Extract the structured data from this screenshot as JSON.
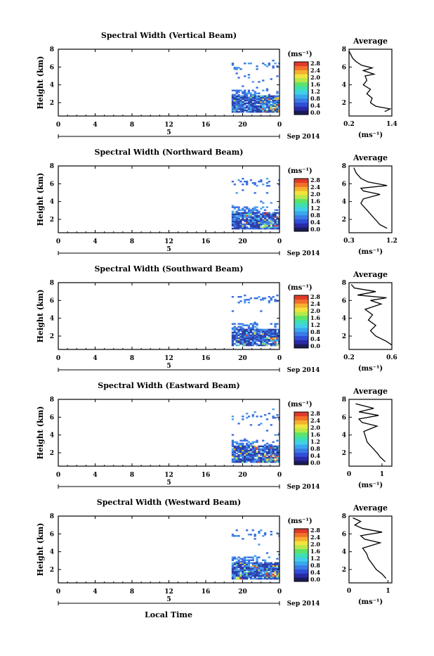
{
  "footer": {
    "xlabel": "Local Time"
  },
  "colorscale": {
    "colors": [
      "#1b1b5a",
      "#2a2aa8",
      "#2f4fd8",
      "#3a7be6",
      "#38a8ee",
      "#40d0e6",
      "#3fe0b0",
      "#5ce36a",
      "#b8e84a",
      "#f2e43c",
      "#f6b02e",
      "#f2702a",
      "#e03a2a"
    ],
    "value_colors": [
      "#2d3fa8",
      "#3a6fe0",
      "#4aa0ec",
      "#56d2e0",
      "#6ee08a",
      "#c8e24a",
      "#f0b030",
      "#e04a2a"
    ]
  },
  "chart_data": [
    {
      "type": "heatmap",
      "title": "Spectral Width (Vertical Beam)",
      "ylabel": "Height (km)",
      "x_ticks": [
        "0",
        "4",
        "8",
        "12",
        "16",
        "20",
        "0"
      ],
      "day_label": "5",
      "date_label": "Sep 2014",
      "xlim": [
        0,
        24
      ],
      "ylim": [
        0.5,
        8
      ],
      "y_ticks": [
        "2",
        "4",
        "6",
        "8"
      ],
      "colorbar": {
        "unit": "(ms⁻¹)",
        "ticks": [
          "0.0",
          "0.4",
          "0.8",
          "1.2",
          "1.6",
          "2.0",
          "2.4",
          "2.8"
        ],
        "range": [
          0,
          2.8
        ]
      },
      "average": {
        "title": "Average",
        "xlabel": "(ms⁻¹)",
        "x_ticks": [
          "0.2",
          "1.4"
        ],
        "xlim": [
          0.2,
          1.4
        ],
        "profile": [
          [
            1.2,
            1.0
          ],
          [
            1.35,
            1.3
          ],
          [
            0.95,
            1.6
          ],
          [
            0.8,
            2.0
          ],
          [
            0.85,
            2.5
          ],
          [
            0.7,
            3.0
          ],
          [
            0.8,
            3.5
          ],
          [
            0.6,
            4.0
          ],
          [
            0.7,
            4.5
          ],
          [
            0.65,
            5.0
          ],
          [
            0.9,
            5.2
          ],
          [
            0.6,
            5.6
          ],
          [
            0.85,
            5.9
          ],
          [
            0.55,
            6.2
          ],
          [
            0.4,
            6.6
          ],
          [
            0.3,
            7.0
          ],
          [
            0.25,
            7.4
          ],
          [
            0.2,
            7.8
          ]
        ]
      }
    },
    {
      "type": "heatmap",
      "title": "Spectral Width (Northward Beam)",
      "ylabel": "Height (km)",
      "x_ticks": [
        "0",
        "4",
        "8",
        "12",
        "16",
        "20",
        "0"
      ],
      "day_label": "5",
      "date_label": "Sep 2014",
      "xlim": [
        0,
        24
      ],
      "ylim": [
        0.5,
        8
      ],
      "y_ticks": [
        "2",
        "4",
        "6",
        "8"
      ],
      "colorbar": {
        "unit": "(ms⁻¹)",
        "ticks": [
          "0.0",
          "0.4",
          "0.8",
          "1.2",
          "1.6",
          "2.0",
          "2.4",
          "2.8"
        ],
        "range": [
          0,
          2.8
        ]
      },
      "average": {
        "title": "Average",
        "xlabel": "(ms⁻¹)",
        "x_ticks": [
          "0.3",
          "1.2"
        ],
        "xlim": [
          0.3,
          1.2
        ],
        "profile": [
          [
            1.1,
            1.0
          ],
          [
            0.95,
            1.4
          ],
          [
            0.85,
            2.0
          ],
          [
            0.75,
            2.6
          ],
          [
            0.65,
            3.2
          ],
          [
            0.55,
            3.8
          ],
          [
            0.6,
            4.3
          ],
          [
            0.95,
            4.8
          ],
          [
            0.6,
            5.2
          ],
          [
            0.55,
            5.5
          ],
          [
            1.1,
            5.8
          ],
          [
            0.7,
            6.2
          ],
          [
            0.55,
            6.6
          ],
          [
            0.45,
            7.2
          ],
          [
            0.4,
            7.8
          ]
        ]
      }
    },
    {
      "type": "heatmap",
      "title": "Spectral Width (Southward Beam)",
      "ylabel": "Height (km)",
      "x_ticks": [
        "0",
        "4",
        "8",
        "12",
        "16",
        "20",
        "0"
      ],
      "day_label": "5",
      "date_label": "Sep 2014",
      "xlim": [
        0,
        24
      ],
      "ylim": [
        0.5,
        8
      ],
      "y_ticks": [
        "2",
        "4",
        "6",
        "8"
      ],
      "colorbar": {
        "unit": "(ms⁻¹)",
        "ticks": [
          "0.0",
          "0.4",
          "0.8",
          "1.2",
          "1.6",
          "2.0",
          "2.4",
          "2.8"
        ],
        "range": [
          0,
          2.8
        ]
      },
      "average": {
        "title": "Average",
        "xlabel": "(ms⁻¹)",
        "x_ticks": [
          "0.2",
          "0.6"
        ],
        "xlim": [
          0.2,
          0.6
        ],
        "profile": [
          [
            0.6,
            1.0
          ],
          [
            0.55,
            1.4
          ],
          [
            0.45,
            2.0
          ],
          [
            0.4,
            2.6
          ],
          [
            0.45,
            3.2
          ],
          [
            0.38,
            3.8
          ],
          [
            0.42,
            4.4
          ],
          [
            0.35,
            5.0
          ],
          [
            0.5,
            5.6
          ],
          [
            0.4,
            6.0
          ],
          [
            0.55,
            6.3
          ],
          [
            0.28,
            6.6
          ],
          [
            0.45,
            7.0
          ],
          [
            0.25,
            7.4
          ],
          [
            0.22,
            7.8
          ]
        ]
      }
    },
    {
      "type": "heatmap",
      "title": "Spectral Width (Eastward Beam)",
      "ylabel": "Height (km)",
      "x_ticks": [
        "0",
        "4",
        "8",
        "12",
        "16",
        "20",
        "0"
      ],
      "day_label": "5",
      "date_label": "Sep 2014",
      "xlim": [
        0,
        24
      ],
      "ylim": [
        0.5,
        8
      ],
      "y_ticks": [
        "2",
        "4",
        "6",
        "8"
      ],
      "colorbar": {
        "unit": "(ms⁻¹)",
        "ticks": [
          "0.0",
          "0.4",
          "0.8",
          "1.2",
          "1.6",
          "2.0",
          "2.4",
          "2.8"
        ],
        "range": [
          0,
          2.8
        ]
      },
      "average": {
        "title": "Average",
        "xlabel": "(ms⁻¹)",
        "x_ticks": [
          "0",
          "1"
        ],
        "xlim": [
          0,
          1.3
        ],
        "profile": [
          [
            1.1,
            1.0
          ],
          [
            0.95,
            1.5
          ],
          [
            0.85,
            2.0
          ],
          [
            0.7,
            2.6
          ],
          [
            0.55,
            3.2
          ],
          [
            0.5,
            3.8
          ],
          [
            0.45,
            4.4
          ],
          [
            0.85,
            5.0
          ],
          [
            0.4,
            5.4
          ],
          [
            0.3,
            5.8
          ],
          [
            0.9,
            6.2
          ],
          [
            0.3,
            6.6
          ],
          [
            0.75,
            7.0
          ],
          [
            0.2,
            7.5
          ]
        ]
      }
    },
    {
      "type": "heatmap",
      "title": "Spectral Width (Westward Beam)",
      "ylabel": "Height (km)",
      "x_ticks": [
        "0",
        "4",
        "8",
        "12",
        "16",
        "20",
        "0"
      ],
      "day_label": "5",
      "date_label": "Sep 2014",
      "xlim": [
        0,
        24
      ],
      "ylim": [
        0.5,
        8
      ],
      "y_ticks": [
        "2",
        "4",
        "6",
        "8"
      ],
      "colorbar": {
        "unit": "(ms⁻¹)",
        "ticks": [
          "0.0",
          "0.4",
          "0.8",
          "1.2",
          "1.6",
          "2.0",
          "2.4",
          "2.8"
        ],
        "range": [
          0,
          2.8
        ]
      },
      "average": {
        "title": "Average",
        "xlabel": "(ms⁻¹)",
        "x_ticks": [
          "0",
          "1"
        ],
        "xlim": [
          0,
          1.1
        ],
        "profile": [
          [
            0.95,
            1.0
          ],
          [
            0.85,
            1.5
          ],
          [
            0.7,
            2.0
          ],
          [
            0.6,
            2.6
          ],
          [
            0.5,
            3.2
          ],
          [
            0.45,
            3.8
          ],
          [
            0.35,
            4.4
          ],
          [
            0.8,
            5.0
          ],
          [
            0.4,
            5.4
          ],
          [
            0.3,
            5.8
          ],
          [
            0.85,
            6.2
          ],
          [
            0.35,
            6.6
          ],
          [
            0.15,
            7.0
          ],
          [
            0.3,
            7.4
          ],
          [
            0.1,
            7.8
          ]
        ]
      }
    }
  ]
}
